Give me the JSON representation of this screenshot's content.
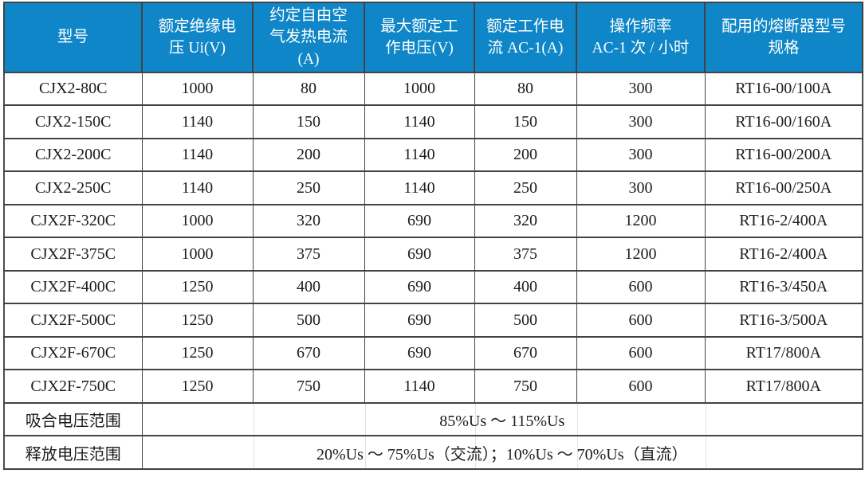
{
  "colors": {
    "header_bg": "#0f86c7",
    "header_text": "#ffffff",
    "border": "#434343",
    "text": "#1c1c1c"
  },
  "table": {
    "columns": [
      "型号",
      "额定绝缘电\n压 Ui(V)",
      "约定自由空\n气发热电流\n(A)",
      "最大额定工\n作电压(V)",
      "额定工作电\n流 AC-1(A)",
      "操作频率\nAC-1 次 / 小时",
      "配用的熔断器型号\n规格"
    ],
    "rows": [
      {
        "cells": [
          "CJX2-80C",
          "1000",
          "80",
          "1000",
          "80",
          "300",
          "RT16-00/100A"
        ]
      },
      {
        "cells": [
          "CJX2-150C",
          "1140",
          "150",
          "1140",
          "150",
          "300",
          "RT16-00/160A"
        ]
      },
      {
        "cells": [
          "CJX2-200C",
          "1140",
          "200",
          "1140",
          "200",
          "300",
          "RT16-00/200A"
        ]
      },
      {
        "cells": [
          "CJX2-250C",
          "1140",
          "250",
          "1140",
          "250",
          "300",
          "RT16-00/250A"
        ]
      },
      {
        "cells": [
          "CJX2F-320C",
          "1000",
          "320",
          "690",
          "320",
          "1200",
          "RT16-2/400A"
        ]
      },
      {
        "cells": [
          "CJX2F-375C",
          "1000",
          "375",
          "690",
          "375",
          "1200",
          "RT16-2/400A"
        ]
      },
      {
        "cells": [
          "CJX2F-400C",
          "1250",
          "400",
          "690",
          "400",
          "600",
          "RT16-3/450A"
        ]
      },
      {
        "cells": [
          "CJX2F-500C",
          "1250",
          "500",
          "690",
          "500",
          "600",
          "RT16-3/500A"
        ]
      },
      {
        "cells": [
          "CJX2F-670C",
          "1250",
          "670",
          "690",
          "670",
          "600",
          "RT17/800A"
        ]
      },
      {
        "cells": [
          "CJX2F-750C",
          "1250",
          "750",
          "1140",
          "750",
          "600",
          "RT17/800A"
        ]
      }
    ],
    "footer_rows": [
      {
        "label": "吸合电压范围",
        "value": "85%Us ～ 115%Us"
      },
      {
        "label": "释放电压范围",
        "value": "20%Us ～ 75%Us（交流）；10%Us ～ 70%Us（直流）"
      }
    ]
  }
}
